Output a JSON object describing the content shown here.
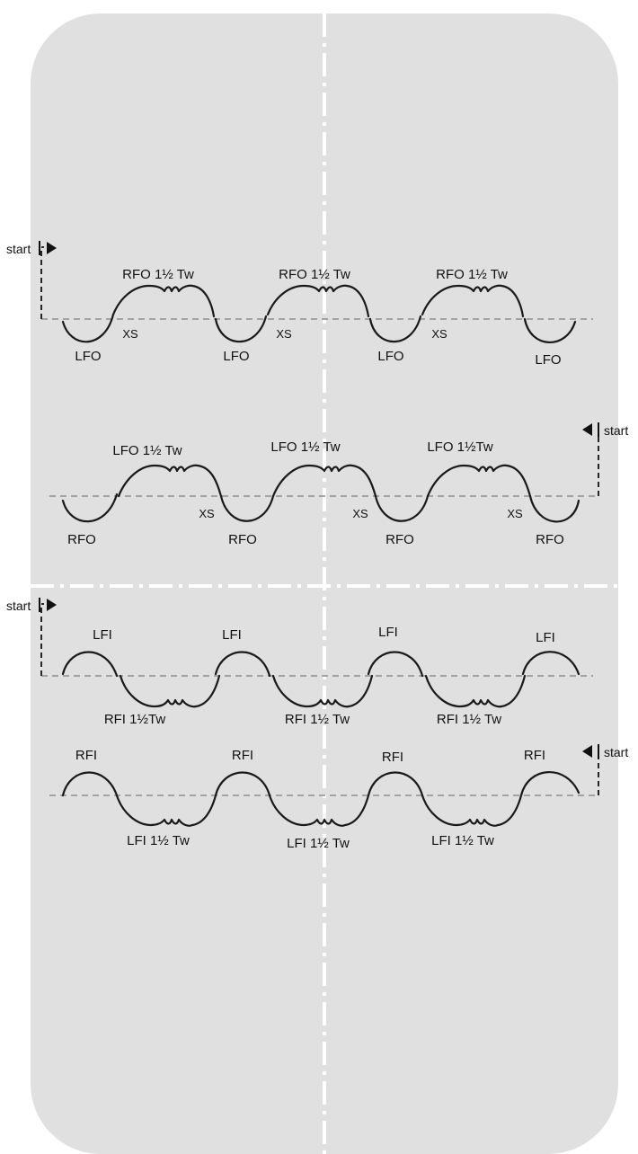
{
  "colors": {
    "rink": "#e0e0e1",
    "centerline": "#ffffff",
    "axis": "#9a9a9a",
    "trace": "#1a1a1a",
    "text": "#111111"
  },
  "patterns": [
    {
      "id": "forward-outside-left-start",
      "start_label": "start",
      "start_side": "left",
      "edge_labels": [
        "LFO",
        "RFO 1½ Tw",
        "LFO",
        "RFO 1½ Tw",
        "LFO",
        "RFO 1½ Tw",
        "LFO"
      ],
      "xs_labels": [
        "XS",
        "XS",
        "XS"
      ]
    },
    {
      "id": "forward-outside-right-start",
      "start_label": "start",
      "start_side": "right",
      "edge_labels": [
        "RFO",
        "LFO 1½ Tw",
        "RFO",
        "LFO 1½ Tw",
        "RFO",
        "LFO 1½Tw",
        "RFO"
      ],
      "xs_labels": [
        "XS",
        "XS",
        "XS"
      ]
    },
    {
      "id": "forward-inside-left-start",
      "start_label": "start",
      "start_side": "left",
      "edge_labels": [
        "LFI",
        "RFI 1½Tw",
        "LFI",
        "RFI 1½ Tw",
        "LFI",
        "RFI 1½ Tw",
        "LFI"
      ],
      "xs_labels": []
    },
    {
      "id": "forward-inside-right-start",
      "start_label": "start",
      "start_side": "right",
      "edge_labels": [
        "RFI",
        "LFI 1½ Tw",
        "RFI",
        "LFI 1½ Tw",
        "RFI",
        "LFI 1½ Tw",
        "RFI"
      ],
      "xs_labels": []
    }
  ]
}
